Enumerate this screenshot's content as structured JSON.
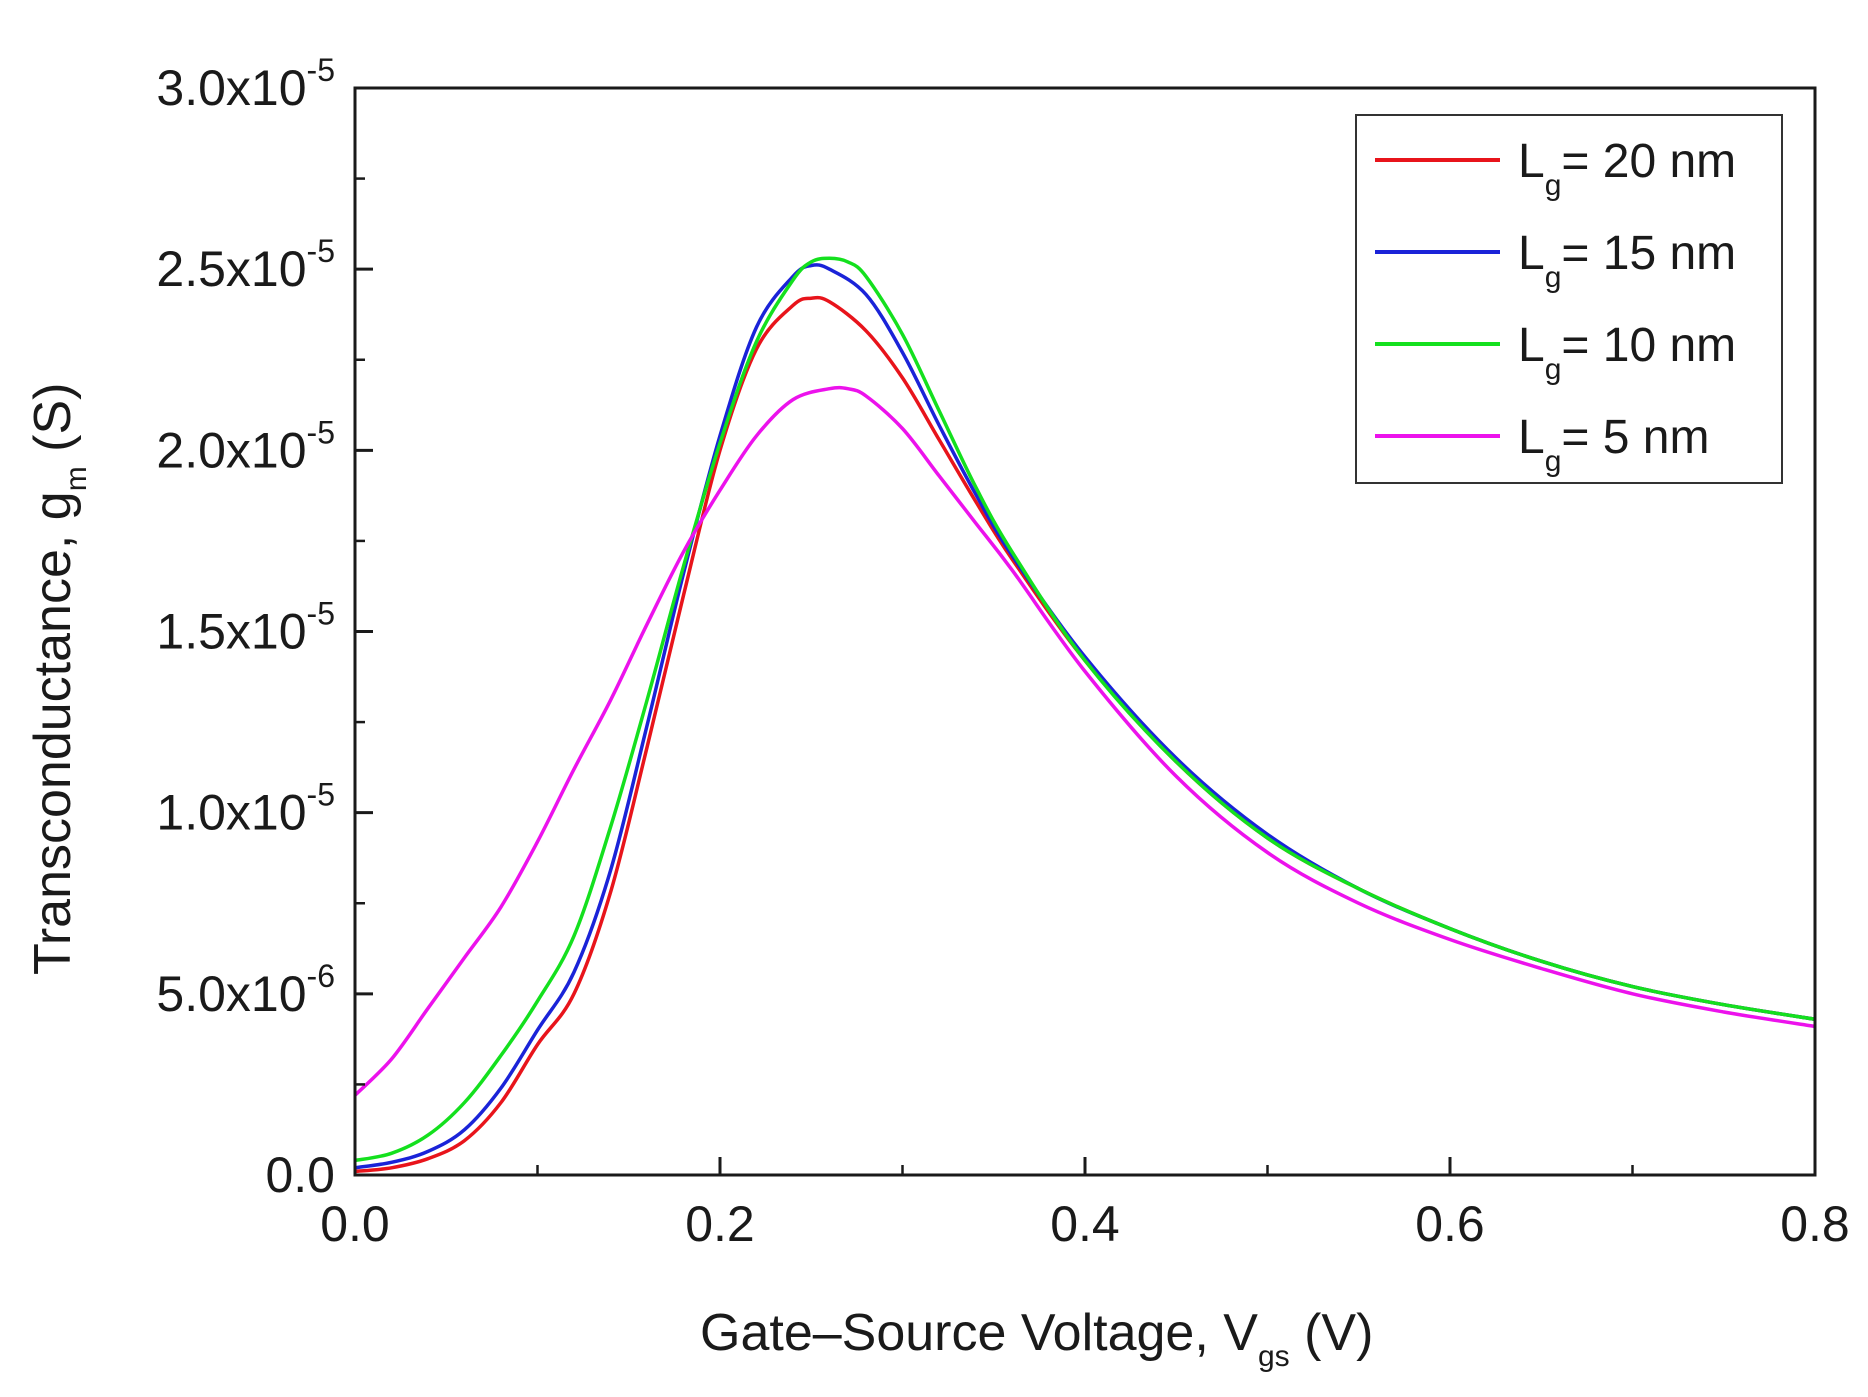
{
  "chart_data": {
    "type": "line",
    "title": "",
    "xlabel": {
      "main": "Gate–Source Voltage, V",
      "sub": "gs",
      "unit": " (V)"
    },
    "ylabel": {
      "main": "Transconductance, g",
      "sub": "m",
      "unit": " (S)"
    },
    "xlim": [
      0.0,
      0.8
    ],
    "ylim": [
      0.0,
      3e-05
    ],
    "x_ticks": [
      0.0,
      0.2,
      0.4,
      0.6,
      0.8
    ],
    "x_tick_labels": [
      "0.0",
      "0.2",
      "0.4",
      "0.6",
      "0.8"
    ],
    "x_minor_ticks": [
      0.1,
      0.3,
      0.5,
      0.7
    ],
    "y_ticks": [
      0,
      5e-06,
      1e-05,
      1.5e-05,
      2e-05,
      2.5e-05,
      3e-05
    ],
    "y_tick_labels": [
      {
        "base": "0.0",
        "exp": ""
      },
      {
        "base": "5.0x10",
        "exp": "-6"
      },
      {
        "base": "1.0x10",
        "exp": "-5"
      },
      {
        "base": "1.5x10",
        "exp": "-5"
      },
      {
        "base": "2.0x10",
        "exp": "-5"
      },
      {
        "base": "2.5x10",
        "exp": "-5"
      },
      {
        "base": "3.0x10",
        "exp": "-5"
      }
    ],
    "y_minor_ticks": [
      2.5e-06,
      7.5e-06,
      1.25e-05,
      1.75e-05,
      2.25e-05,
      2.75e-05
    ],
    "grid": false,
    "legend_position": "top-right",
    "series": [
      {
        "name": "Lg= 20 nm",
        "label_main": "L",
        "label_sub": "g",
        "label_rest": "= 20 nm",
        "color": "#e8141b",
        "x": [
          0.0,
          0.02,
          0.04,
          0.06,
          0.08,
          0.1,
          0.12,
          0.14,
          0.16,
          0.18,
          0.2,
          0.22,
          0.24,
          0.25,
          0.26,
          0.28,
          0.3,
          0.32,
          0.34,
          0.36,
          0.4,
          0.45,
          0.5,
          0.55,
          0.6,
          0.65,
          0.7,
          0.75,
          0.8
        ],
        "values": [
          1e-07,
          2e-07,
          4.5e-07,
          9.5e-07,
          2e-06,
          3.6e-06,
          5e-06,
          7.8e-06,
          1.18e-05,
          1.6e-05,
          2e-05,
          2.28e-05,
          2.4e-05,
          2.42e-05,
          2.41e-05,
          2.33e-05,
          2.2e-05,
          2.03e-05,
          1.86e-05,
          1.7e-05,
          1.42e-05,
          1.14e-05,
          9.3e-06,
          7.9e-06,
          6.8e-06,
          5.9e-06,
          5.2e-06,
          4.7e-06,
          4.3e-06
        ]
      },
      {
        "name": "Lg= 15 nm",
        "label_main": "L",
        "label_sub": "g",
        "label_rest": "= 15 nm",
        "color": "#1a23d8",
        "x": [
          0.0,
          0.02,
          0.04,
          0.06,
          0.08,
          0.1,
          0.12,
          0.14,
          0.16,
          0.18,
          0.2,
          0.22,
          0.24,
          0.25,
          0.26,
          0.28,
          0.3,
          0.32,
          0.34,
          0.36,
          0.4,
          0.45,
          0.5,
          0.55,
          0.6,
          0.65,
          0.7,
          0.75,
          0.8
        ],
        "values": [
          2e-07,
          3.5e-07,
          6.5e-07,
          1.25e-06,
          2.4e-06,
          4e-06,
          5.6e-06,
          8.4e-06,
          1.24e-05,
          1.66e-05,
          2.04e-05,
          2.34e-05,
          2.48e-05,
          2.51e-05,
          2.5e-05,
          2.43e-05,
          2.27e-05,
          2.07e-05,
          1.88e-05,
          1.71e-05,
          1.43e-05,
          1.15e-05,
          9.4e-06,
          7.9e-06,
          6.8e-06,
          5.9e-06,
          5.2e-06,
          4.7e-06,
          4.3e-06
        ]
      },
      {
        "name": "Lg= 10 nm",
        "label_main": "L",
        "label_sub": "g",
        "label_rest": "= 10 nm",
        "color": "#14e01e",
        "x": [
          0.0,
          0.02,
          0.04,
          0.06,
          0.08,
          0.1,
          0.12,
          0.14,
          0.16,
          0.18,
          0.2,
          0.22,
          0.24,
          0.25,
          0.26,
          0.27,
          0.28,
          0.3,
          0.32,
          0.34,
          0.36,
          0.4,
          0.45,
          0.5,
          0.55,
          0.6,
          0.65,
          0.7,
          0.75,
          0.8
        ],
        "values": [
          4e-07,
          6e-07,
          1.1e-06,
          2e-06,
          3.3e-06,
          4.8e-06,
          6.6e-06,
          9.6e-06,
          1.31e-05,
          1.68e-05,
          2.02e-05,
          2.3e-05,
          2.47e-05,
          2.52e-05,
          2.53e-05,
          2.52e-05,
          2.48e-05,
          2.32e-05,
          2.11e-05,
          1.9e-05,
          1.72e-05,
          1.42e-05,
          1.14e-05,
          9.3e-06,
          7.9e-06,
          6.8e-06,
          5.9e-06,
          5.2e-06,
          4.7e-06,
          4.3e-06
        ]
      },
      {
        "name": "Lg= 5 nm",
        "label_main": "L",
        "label_sub": "g",
        "label_rest": "= 5 nm",
        "color": "#ec12ec",
        "x": [
          0.0,
          0.02,
          0.04,
          0.06,
          0.08,
          0.1,
          0.12,
          0.14,
          0.16,
          0.18,
          0.2,
          0.22,
          0.24,
          0.26,
          0.27,
          0.28,
          0.3,
          0.32,
          0.34,
          0.36,
          0.4,
          0.45,
          0.5,
          0.55,
          0.6,
          0.65,
          0.7,
          0.75,
          0.8
        ],
        "values": [
          2.2e-06,
          3.2e-06,
          4.6e-06,
          6e-06,
          7.4e-06,
          9.2e-06,
          1.12e-05,
          1.31e-05,
          1.52e-05,
          1.72e-05,
          1.89e-05,
          2.04e-05,
          2.14e-05,
          2.17e-05,
          2.17e-05,
          2.15e-05,
          2.06e-05,
          1.93e-05,
          1.8e-05,
          1.67e-05,
          1.39e-05,
          1.1e-05,
          8.9e-06,
          7.5e-06,
          6.5e-06,
          5.7e-06,
          5e-06,
          4.5e-06,
          4.1e-06
        ]
      }
    ]
  }
}
